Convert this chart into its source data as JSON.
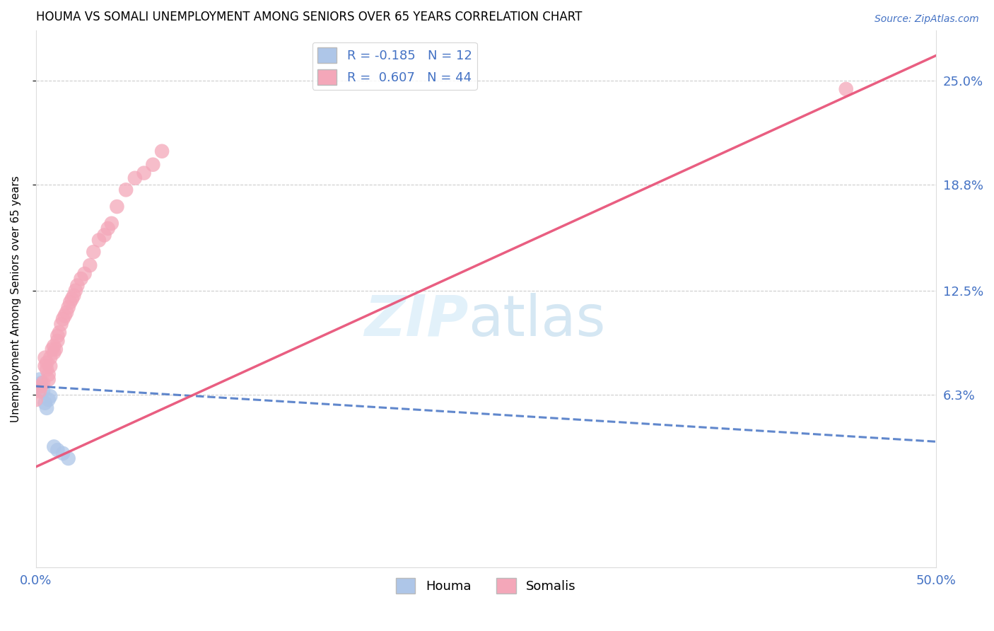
{
  "title": "HOUMA VS SOMALI UNEMPLOYMENT AMONG SENIORS OVER 65 YEARS CORRELATION CHART",
  "source": "Source: ZipAtlas.com",
  "ylabel": "Unemployment Among Seniors over 65 years",
  "xlim": [
    0.0,
    0.5
  ],
  "ylim": [
    -0.04,
    0.28
  ],
  "houma_R": -0.185,
  "houma_N": 12,
  "somali_R": 0.607,
  "somali_N": 44,
  "houma_color": "#aec6e8",
  "houma_line_color": "#4472c4",
  "somali_color": "#f4a7b9",
  "somali_line_color": "#e8557a",
  "ytick_vals": [
    0.063,
    0.125,
    0.188,
    0.25
  ],
  "ytick_labels": [
    "6.3%",
    "12.5%",
    "18.8%",
    "25.0%"
  ],
  "houma_x": [
    0.0,
    0.002,
    0.003,
    0.004,
    0.005,
    0.006,
    0.007,
    0.008,
    0.01,
    0.012,
    0.015,
    0.018
  ],
  "houma_y": [
    0.068,
    0.072,
    0.07,
    0.065,
    0.058,
    0.055,
    0.06,
    0.062,
    0.032,
    0.03,
    0.028,
    0.025
  ],
  "somali_x": [
    0.0,
    0.002,
    0.003,
    0.004,
    0.005,
    0.005,
    0.006,
    0.006,
    0.007,
    0.007,
    0.008,
    0.008,
    0.009,
    0.01,
    0.01,
    0.011,
    0.012,
    0.012,
    0.013,
    0.014,
    0.015,
    0.016,
    0.017,
    0.018,
    0.019,
    0.02,
    0.021,
    0.022,
    0.023,
    0.025,
    0.027,
    0.03,
    0.032,
    0.035,
    0.038,
    0.04,
    0.042,
    0.045,
    0.05,
    0.055,
    0.06,
    0.065,
    0.07,
    0.45
  ],
  "somali_y": [
    0.06,
    0.065,
    0.068,
    0.07,
    0.08,
    0.085,
    0.078,
    0.082,
    0.072,
    0.075,
    0.08,
    0.085,
    0.09,
    0.088,
    0.092,
    0.09,
    0.095,
    0.098,
    0.1,
    0.105,
    0.108,
    0.11,
    0.112,
    0.115,
    0.118,
    0.12,
    0.122,
    0.125,
    0.128,
    0.132,
    0.135,
    0.14,
    0.148,
    0.155,
    0.158,
    0.162,
    0.165,
    0.175,
    0.185,
    0.192,
    0.195,
    0.2,
    0.208,
    0.245
  ],
  "somali_line_x": [
    0.0,
    0.5
  ],
  "somali_line_y": [
    0.02,
    0.265
  ],
  "houma_line_x": [
    0.0,
    0.5
  ],
  "houma_line_y": [
    0.068,
    0.035
  ]
}
